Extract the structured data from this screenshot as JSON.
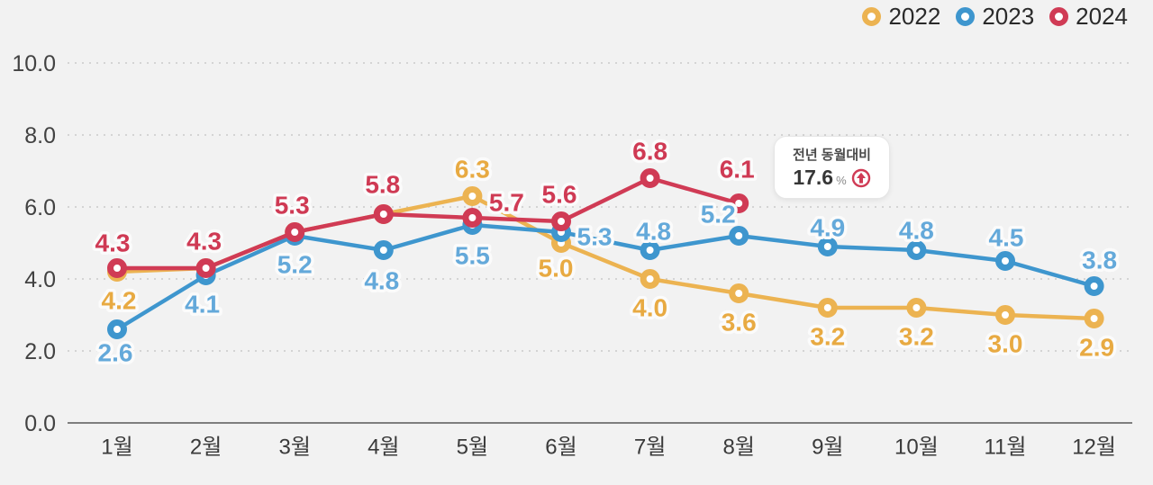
{
  "page": {
    "background": "#f2f2f2"
  },
  "legend": {
    "position": "top-right",
    "items": [
      {
        "label": "2022",
        "color": "#ecb351"
      },
      {
        "label": "2023",
        "color": "#3e96ce"
      },
      {
        "label": "2024",
        "color": "#d03b55"
      }
    ]
  },
  "annotation": {
    "line1": "전년 동월대비",
    "value": "17.6",
    "unit": "%",
    "icon": "up-arrow-in-circle",
    "accent": "#d03b55"
  },
  "chart_data": {
    "type": "line",
    "title": "",
    "x_categories": [
      "1월",
      "2월",
      "3월",
      "4월",
      "5월",
      "6월",
      "7월",
      "8월",
      "9월",
      "10월",
      "11월",
      "12월"
    ],
    "ylim": [
      0,
      10
    ],
    "yticks": [
      0,
      2,
      4,
      6,
      8,
      10
    ],
    "ytick_labels": [
      "0.0",
      "2.0",
      "4.0",
      "6.0",
      "8.0",
      "10.0"
    ],
    "grid": "horizontal-dashed",
    "legend_position": "top-right",
    "series": [
      {
        "name": "2022",
        "color": "#ecb351",
        "label_color": "#e8aa42",
        "values": [
          4.2,
          4.3,
          5.3,
          5.8,
          6.3,
          5.0,
          4.0,
          3.6,
          3.2,
          3.2,
          3.0,
          2.9
        ],
        "point_labels": [
          "4.2",
          "",
          "",
          "",
          "6.3",
          "5.0",
          "4.0",
          "3.6",
          "3.2",
          "3.2",
          "3.0",
          "2.9"
        ],
        "label_offsets": [
          [
            2,
            32
          ],
          [
            0,
            0
          ],
          [
            0,
            0
          ],
          [
            0,
            0
          ],
          [
            0,
            -30
          ],
          [
            -6,
            28
          ],
          [
            0,
            32
          ],
          [
            0,
            32
          ],
          [
            0,
            32
          ],
          [
            0,
            32
          ],
          [
            0,
            32
          ],
          [
            3,
            32
          ]
        ]
      },
      {
        "name": "2023",
        "color": "#3e96ce",
        "label_color": "#64a9da",
        "values": [
          2.6,
          4.1,
          5.2,
          4.8,
          5.5,
          5.3,
          4.8,
          5.2,
          4.9,
          4.8,
          4.5,
          3.8
        ],
        "point_labels": [
          "2.6",
          "4.1",
          "5.2",
          "4.8",
          "5.5",
          "5.3",
          "4.8",
          "5.2",
          "4.9",
          "4.8",
          "4.5",
          "3.8"
        ],
        "label_offsets": [
          [
            -2,
            26
          ],
          [
            -4,
            32
          ],
          [
            0,
            32
          ],
          [
            -2,
            34
          ],
          [
            0,
            34
          ],
          [
            37,
            5
          ],
          [
            4,
            -21
          ],
          [
            -23,
            -24
          ],
          [
            0,
            -21
          ],
          [
            0,
            -22
          ],
          [
            1,
            -26
          ],
          [
            6,
            -29
          ]
        ]
      },
      {
        "name": "2024",
        "color": "#d03b55",
        "label_color": "#cf3a54",
        "values": [
          4.3,
          4.3,
          5.3,
          5.8,
          5.7,
          5.6,
          6.8,
          6.1
        ],
        "point_labels": [
          "4.3",
          "4.3",
          "5.3",
          "5.8",
          "5.7",
          "5.6",
          "6.8",
          "6.1"
        ],
        "label_offsets": [
          [
            -5,
            -28
          ],
          [
            -2,
            -30
          ],
          [
            -3,
            -30
          ],
          [
            -1,
            -33
          ],
          [
            38,
            -17
          ],
          [
            -2,
            -30
          ],
          [
            0,
            -30
          ],
          [
            -2,
            -38
          ]
        ]
      }
    ]
  }
}
